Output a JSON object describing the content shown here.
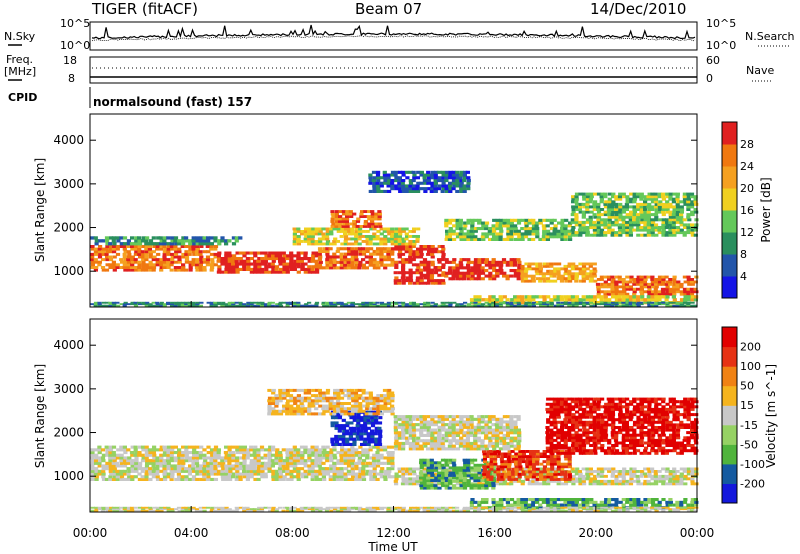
{
  "header": {
    "radar": "TIGER (fitACF)",
    "beam": "Beam 07",
    "date": "14/Dec/2010"
  },
  "noise_panel": {
    "left_label": "N.Sky",
    "left_top": "10^5",
    "left_bottom": "10^0",
    "right_top": "10^5",
    "right_bottom": "10^0",
    "right_label": "N.Search"
  },
  "freq_panel": {
    "left_label_1": "Freq.",
    "left_label_2": "[MHz]",
    "left_top": "18",
    "left_bottom": "8",
    "right_top": "60",
    "right_bottom": "0",
    "right_label": "Nave"
  },
  "cpid_panel": {
    "label": "CPID",
    "text": "normalsound (fast) 157"
  },
  "x_axis": {
    "title": "Time UT",
    "ticks": [
      "00:00",
      "04:00",
      "08:00",
      "12:00",
      "16:00",
      "20:00",
      "00:00"
    ]
  },
  "colors": {
    "panel_border": "#000000",
    "background": "#ffffff"
  },
  "chart_data": [
    {
      "type": "heatmap",
      "panel": "power",
      "ylabel": "Slant Range [km]",
      "y_ticks": [
        "1000",
        "2000",
        "3000",
        "4000"
      ],
      "ylim": [
        180,
        4600
      ],
      "colorbar_label": "Power [dB]",
      "colorbar_ticks": [
        "4",
        "8",
        "12",
        "16",
        "20",
        "24",
        "28"
      ],
      "colorbar_colors": [
        "#1414e6",
        "#2255aa",
        "#2a8f5e",
        "#64c85a",
        "#f0d020",
        "#f5a020",
        "#f07810",
        "#e02020"
      ],
      "bands": [
        {
          "t0": 0,
          "t1": 5,
          "r0": 1000,
          "r1": 1600,
          "level": 6
        },
        {
          "t0": 5,
          "t1": 9,
          "r0": 950,
          "r1": 1450,
          "level": 7
        },
        {
          "t0": 9,
          "t1": 12,
          "r0": 1050,
          "r1": 1550,
          "level": 6
        },
        {
          "t0": 12,
          "t1": 14,
          "r0": 700,
          "r1": 1600,
          "level": 7
        },
        {
          "t0": 14,
          "t1": 17,
          "r0": 800,
          "r1": 1300,
          "level": 7
        },
        {
          "t0": 17,
          "t1": 20,
          "r0": 750,
          "r1": 1200,
          "level": 5
        },
        {
          "t0": 20,
          "t1": 24,
          "r0": 450,
          "r1": 900,
          "level": 6
        },
        {
          "t0": 0,
          "t1": 6,
          "r0": 1600,
          "r1": 1800,
          "level": 2
        },
        {
          "t0": 8,
          "t1": 13,
          "r0": 1600,
          "r1": 2000,
          "level": 4
        },
        {
          "t0": 9.5,
          "t1": 11.5,
          "r0": 2000,
          "r1": 2400,
          "level": 6
        },
        {
          "t0": 11,
          "t1": 15,
          "r0": 2800,
          "r1": 3300,
          "level": 1
        },
        {
          "t0": 14,
          "t1": 19,
          "r0": 1700,
          "r1": 2200,
          "level": 3
        },
        {
          "t0": 19,
          "t1": 24,
          "r0": 1800,
          "r1": 2800,
          "level": 3
        },
        {
          "t0": 15,
          "t1": 24,
          "r0": 250,
          "r1": 450,
          "level": 4
        },
        {
          "t0": 0,
          "t1": 24,
          "r0": 200,
          "r1": 300,
          "level": 2
        }
      ]
    },
    {
      "type": "heatmap",
      "panel": "velocity",
      "ylabel": "Slant Range [km]",
      "y_ticks": [
        "1000",
        "2000",
        "3000",
        "4000"
      ],
      "ylim": [
        180,
        4600
      ],
      "colorbar_label": "Velocity [m s^-1]",
      "colorbar_ticks": [
        "200",
        "100",
        "50",
        "15",
        "-15",
        "-50",
        "-100",
        "-200"
      ],
      "colorbar_colors": [
        "#1418dc",
        "#145aa0",
        "#50b43c",
        "#96d264",
        "#c8c8c8",
        "#f5b41e",
        "#f08214",
        "#e63214",
        "#e10000"
      ],
      "bands": [
        {
          "t0": 0,
          "t1": 12,
          "r0": 900,
          "r1": 1700,
          "level": 4
        },
        {
          "t0": 12,
          "t1": 24,
          "r0": 800,
          "r1": 1200,
          "level": 4
        },
        {
          "t0": 9.5,
          "t1": 11.5,
          "r0": 1700,
          "r1": 2500,
          "level": 0
        },
        {
          "t0": 13,
          "t1": 16,
          "r0": 700,
          "r1": 1400,
          "level": 2
        },
        {
          "t0": 15.5,
          "t1": 19,
          "r0": 900,
          "r1": 1600,
          "level": 7
        },
        {
          "t0": 18,
          "t1": 24,
          "r0": 1500,
          "r1": 2800,
          "level": 8
        },
        {
          "t0": 7,
          "t1": 12,
          "r0": 2400,
          "r1": 3000,
          "level": 5
        },
        {
          "t0": 12,
          "t1": 17,
          "r0": 1600,
          "r1": 2400,
          "level": 4
        },
        {
          "t0": 15,
          "t1": 24,
          "r0": 250,
          "r1": 500,
          "level": 2
        },
        {
          "t0": 0,
          "t1": 24,
          "r0": 200,
          "r1": 300,
          "level": 4
        }
      ]
    }
  ]
}
